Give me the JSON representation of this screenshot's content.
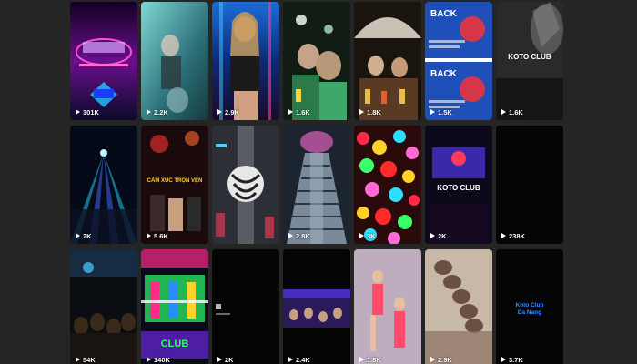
{
  "tiles": [
    {
      "views": "301K",
      "thumb": "neon-stage"
    },
    {
      "views": "2.2K",
      "thumb": "teal-dancer"
    },
    {
      "views": "2.9K",
      "thumb": "blue-selfie"
    },
    {
      "views": "1.6K",
      "thumb": "crowd-green"
    },
    {
      "views": "1.8K",
      "thumb": "umbrella-table"
    },
    {
      "views": "1.5K",
      "thumb": "back-poster",
      "overlay": "BACK",
      "overlay2": "BACK"
    },
    {
      "views": "1.6K",
      "thumb": "koto-dark",
      "overlay": "KOTO CLUB"
    },
    {
      "views": "2K",
      "thumb": "laser-hall"
    },
    {
      "views": "5.6K",
      "thumb": "red-caption",
      "overlay": "CẢM XÚC TRỌN VẸN"
    },
    {
      "views": "",
      "thumb": "robot-dancer"
    },
    {
      "views": "2.8K",
      "thumb": "stairs"
    },
    {
      "views": "3K",
      "thumb": "balls-pit"
    },
    {
      "views": "2K",
      "thumb": "koto-purple",
      "overlay": "KOTO CLUB"
    },
    {
      "views": "238K",
      "thumb": "black"
    },
    {
      "views": "54K",
      "thumb": "crowd-dark"
    },
    {
      "views": "140K",
      "thumb": "glitch-logo",
      "overlay": "CLUB"
    },
    {
      "views": "2K",
      "thumb": "tiktok-black"
    },
    {
      "views": "2.4K",
      "thumb": "wide-crowd"
    },
    {
      "views": "1.8K",
      "thumb": "dancers-pink"
    },
    {
      "views": "2.9K",
      "thumb": "braid"
    },
    {
      "views": "3.7K",
      "thumb": "black-text",
      "overlay": "Koto Club",
      "overlay2": "Da Nang"
    }
  ],
  "colors": {
    "background": "#252525",
    "text": "#ffffff"
  }
}
